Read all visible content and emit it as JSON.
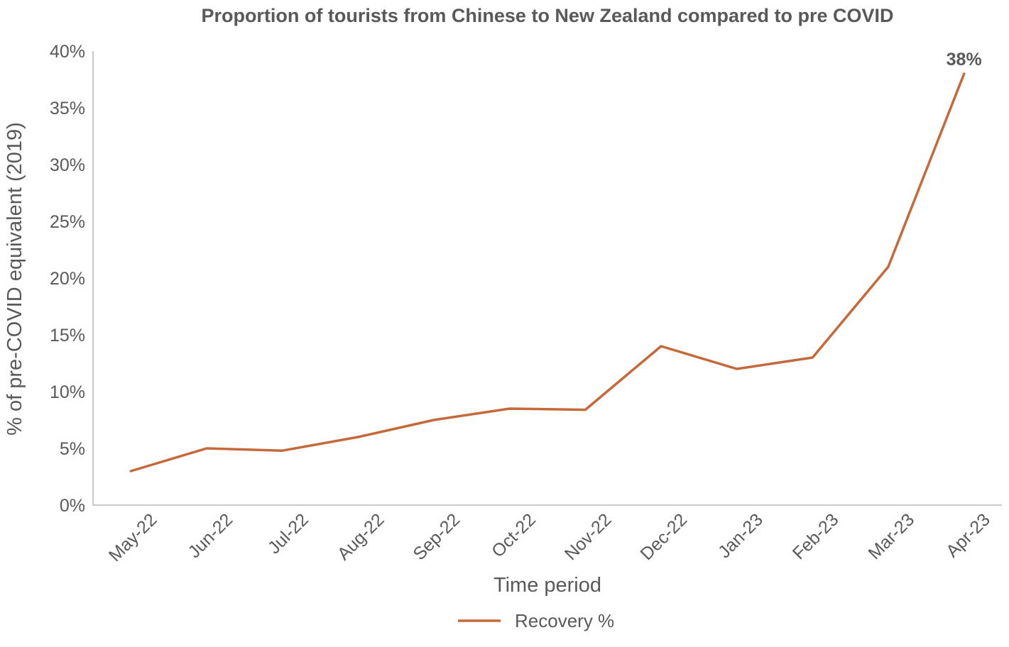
{
  "chart_data": {
    "type": "line",
    "title": "Proportion of tourists from Chinese to New Zealand compared to pre COVID",
    "xlabel": "Time period",
    "ylabel": "% of pre-COVID equivalent (2019)",
    "categories": [
      "May-22",
      "Jun-22",
      "Jul-22",
      "Aug-22",
      "Sep-22",
      "Oct-22",
      "Nov-22",
      "Dec-22",
      "Jan-23",
      "Feb-23",
      "Mar-23",
      "Apr-23"
    ],
    "series": [
      {
        "name": "Recovery %",
        "values": [
          3,
          5,
          4.8,
          6,
          7.5,
          8.5,
          8.4,
          14,
          12,
          13,
          21,
          38
        ],
        "color": "#C5693A"
      }
    ],
    "ylim": [
      0,
      40
    ],
    "yticks": [
      0,
      5,
      10,
      15,
      20,
      25,
      30,
      35,
      40
    ],
    "ytick_labels": [
      "0%",
      "5%",
      "10%",
      "15%",
      "20%",
      "25%",
      "30%",
      "35%",
      "40%"
    ],
    "data_labels": [
      {
        "index": 11,
        "text": "38%"
      }
    ],
    "grid": false,
    "legend_position": "bottom"
  }
}
